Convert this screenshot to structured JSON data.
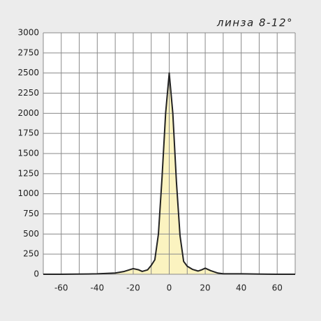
{
  "chart_data": {
    "type": "area",
    "title": "линза 8-12°",
    "x": [
      -70,
      -60,
      -50,
      -40,
      -30,
      -25,
      -20,
      -17,
      -15,
      -12,
      -10,
      -8,
      -6,
      -4,
      -2,
      0,
      2,
      4,
      6,
      8,
      10,
      13,
      16,
      18,
      20,
      23,
      27,
      30,
      40,
      50,
      60,
      70
    ],
    "values": [
      0,
      0,
      2,
      5,
      15,
      35,
      70,
      55,
      35,
      55,
      110,
      180,
      500,
      1200,
      2000,
      2500,
      2000,
      1150,
      480,
      160,
      100,
      60,
      40,
      55,
      75,
      45,
      15,
      5,
      5,
      2,
      0,
      0
    ],
    "color": "#fbf3c0",
    "line_color": "#222222",
    "xlim": [
      -70,
      70
    ],
    "xticks": [
      -60,
      -40,
      -20,
      0,
      20,
      40,
      60
    ],
    "xminor": [
      -70,
      -50,
      -30,
      -10,
      10,
      30,
      50,
      70
    ],
    "ylim": [
      0,
      3000
    ],
    "yticks": [
      0,
      250,
      500,
      750,
      1000,
      1250,
      1500,
      1750,
      2000,
      2250,
      2500,
      2750,
      3000
    ],
    "grid": true
  }
}
